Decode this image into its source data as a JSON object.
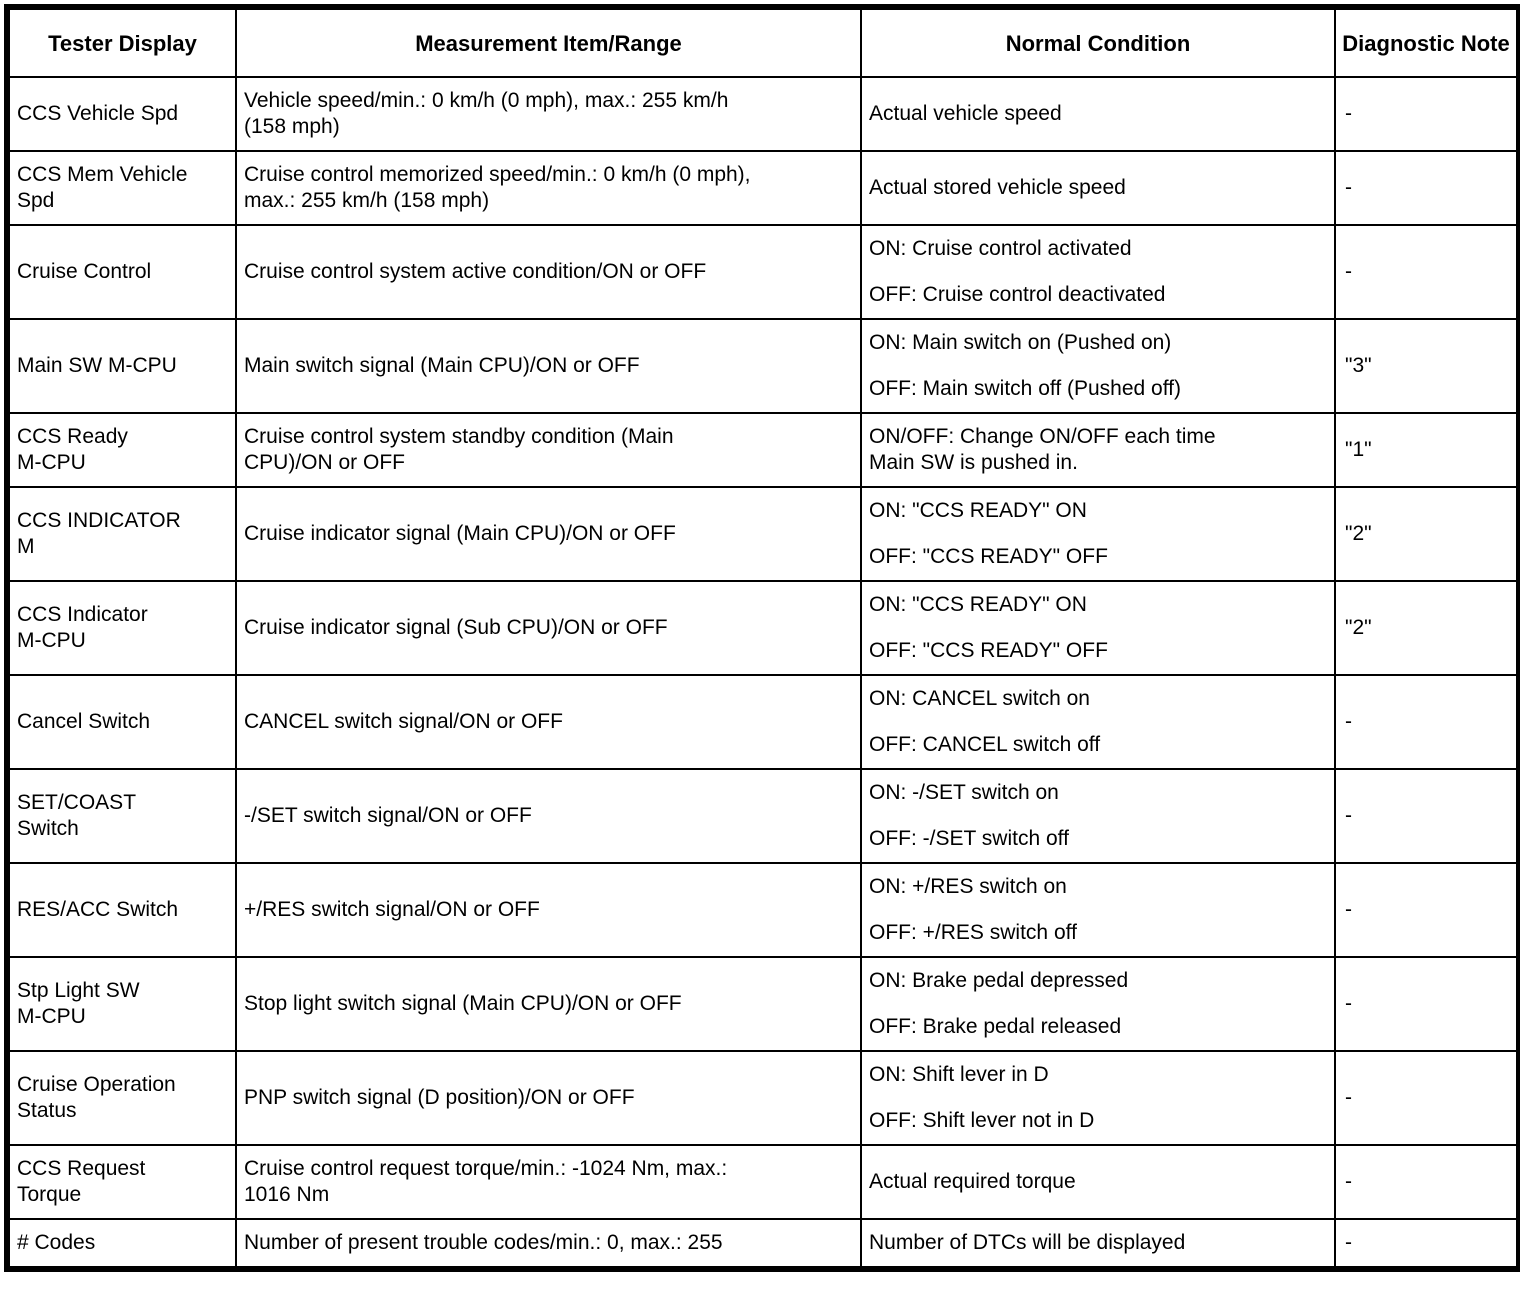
{
  "table": {
    "columns": [
      {
        "label": "Tester Display"
      },
      {
        "label": "Measurement Item/Range"
      },
      {
        "label": "Normal Condition"
      },
      {
        "label": "Diagnostic Note"
      }
    ],
    "rows": [
      {
        "tester_display": [
          "CCS Vehicle Spd"
        ],
        "measurement_item_range": [
          "Vehicle speed/min.: 0 km/h (0 mph), max.: 255 km/h",
          "(158 mph)"
        ],
        "normal_condition": [
          [
            "Actual vehicle speed"
          ]
        ],
        "diagnostic_note": "-"
      },
      {
        "tester_display": [
          "CCS Mem Vehicle",
          "Spd"
        ],
        "measurement_item_range": [
          "Cruise control memorized speed/min.: 0 km/h (0 mph),",
          "max.: 255 km/h (158 mph)"
        ],
        "normal_condition": [
          [
            "Actual stored vehicle speed"
          ]
        ],
        "diagnostic_note": "-"
      },
      {
        "tester_display": [
          "Cruise Control"
        ],
        "measurement_item_range": [
          "Cruise control system active condition/ON or OFF"
        ],
        "normal_condition": [
          [
            "ON: Cruise control activated"
          ],
          [
            "OFF: Cruise control deactivated"
          ]
        ],
        "diagnostic_note": "-"
      },
      {
        "tester_display": [
          "Main SW M-CPU"
        ],
        "measurement_item_range": [
          "Main switch signal (Main CPU)/ON or OFF"
        ],
        "normal_condition": [
          [
            "ON: Main switch on (Pushed on)"
          ],
          [
            "OFF: Main switch off (Pushed off)"
          ]
        ],
        "diagnostic_note": "\"3\""
      },
      {
        "tester_display": [
          "CCS Ready",
          "M-CPU"
        ],
        "measurement_item_range": [
          "Cruise control system standby condition (Main",
          "CPU)/ON or OFF"
        ],
        "normal_condition": [
          [
            "ON/OFF: Change ON/OFF each time",
            "Main SW is pushed in."
          ]
        ],
        "diagnostic_note": "\"1\""
      },
      {
        "tester_display": [
          "CCS INDICATOR",
          "M"
        ],
        "measurement_item_range": [
          "Cruise indicator signal (Main CPU)/ON or OFF"
        ],
        "normal_condition": [
          [
            "ON: \"CCS READY\" ON"
          ],
          [
            "OFF: \"CCS READY\" OFF"
          ]
        ],
        "diagnostic_note": "\"2\""
      },
      {
        "tester_display": [
          "CCS Indicator",
          "M-CPU"
        ],
        "measurement_item_range": [
          "Cruise indicator signal (Sub CPU)/ON or OFF"
        ],
        "normal_condition": [
          [
            "ON: \"CCS READY\" ON"
          ],
          [
            "OFF: \"CCS READY\" OFF"
          ]
        ],
        "diagnostic_note": "\"2\""
      },
      {
        "tester_display": [
          "Cancel Switch"
        ],
        "measurement_item_range": [
          "CANCEL switch signal/ON or OFF"
        ],
        "normal_condition": [
          [
            "ON: CANCEL switch on"
          ],
          [
            "OFF: CANCEL switch off"
          ]
        ],
        "diagnostic_note": "-"
      },
      {
        "tester_display": [
          "SET/COAST",
          "Switch"
        ],
        "measurement_item_range": [
          "-/SET switch signal/ON or OFF"
        ],
        "normal_condition": [
          [
            "ON: -/SET switch on"
          ],
          [
            "OFF: -/SET switch off"
          ]
        ],
        "diagnostic_note": "-"
      },
      {
        "tester_display": [
          "RES/ACC Switch"
        ],
        "measurement_item_range": [
          "+/RES switch signal/ON or OFF"
        ],
        "normal_condition": [
          [
            "ON: +/RES switch on"
          ],
          [
            "OFF: +/RES switch off"
          ]
        ],
        "diagnostic_note": "-"
      },
      {
        "tester_display": [
          "Stp Light SW",
          "M-CPU"
        ],
        "measurement_item_range": [
          "Stop light switch signal (Main CPU)/ON or OFF"
        ],
        "normal_condition": [
          [
            "ON: Brake pedal depressed"
          ],
          [
            "OFF: Brake pedal released"
          ]
        ],
        "diagnostic_note": "-"
      },
      {
        "tester_display": [
          "Cruise Operation",
          "Status"
        ],
        "measurement_item_range": [
          "PNP switch signal (D position)/ON or OFF"
        ],
        "normal_condition": [
          [
            "ON: Shift lever in D"
          ],
          [
            "OFF: Shift lever not in D"
          ]
        ],
        "diagnostic_note": "-"
      },
      {
        "tester_display": [
          "CCS Request",
          "Torque"
        ],
        "measurement_item_range": [
          "Cruise control request torque/min.: -1024 Nm, max.:",
          "1016 Nm"
        ],
        "normal_condition": [
          [
            "Actual required torque"
          ]
        ],
        "diagnostic_note": "-"
      },
      {
        "tester_display": [
          "# Codes"
        ],
        "measurement_item_range": [
          "Number of present trouble codes/min.: 0, max.: 255"
        ],
        "normal_condition": [
          [
            "Number of DTCs will be displayed"
          ]
        ],
        "diagnostic_note": "-"
      }
    ]
  }
}
